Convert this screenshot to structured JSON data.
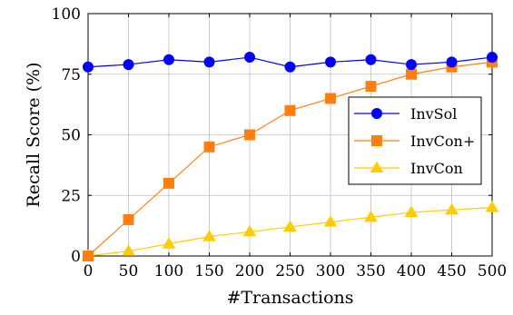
{
  "chart_data": {
    "type": "line",
    "xlabel": "#Transactions",
    "ylabel": "Recall Score (%)",
    "x": [
      0,
      50,
      100,
      150,
      200,
      250,
      300,
      350,
      400,
      450,
      500
    ],
    "xlim": [
      0,
      500
    ],
    "ylim": [
      0,
      100
    ],
    "xticks": [
      0,
      50,
      100,
      150,
      200,
      250,
      300,
      350,
      400,
      450,
      500
    ],
    "yticks": [
      0,
      25,
      50,
      75,
      100
    ],
    "grid": true,
    "legend_position": "right",
    "series": [
      {
        "name": "InvSol",
        "color": "#0000ff",
        "marker": "circle",
        "values": [
          78,
          79,
          81,
          80,
          82,
          78,
          80,
          81,
          79,
          80,
          82
        ]
      },
      {
        "name": "InvCon+",
        "color": "#ff7f0e",
        "marker": "square",
        "values": [
          0,
          15,
          30,
          45,
          50,
          60,
          65,
          70,
          75,
          78,
          80
        ]
      },
      {
        "name": "InvCon",
        "color": "#ffcc00",
        "marker": "triangle",
        "values": [
          0,
          2,
          5,
          8,
          10,
          12,
          14,
          16,
          18,
          19,
          20
        ]
      }
    ]
  }
}
